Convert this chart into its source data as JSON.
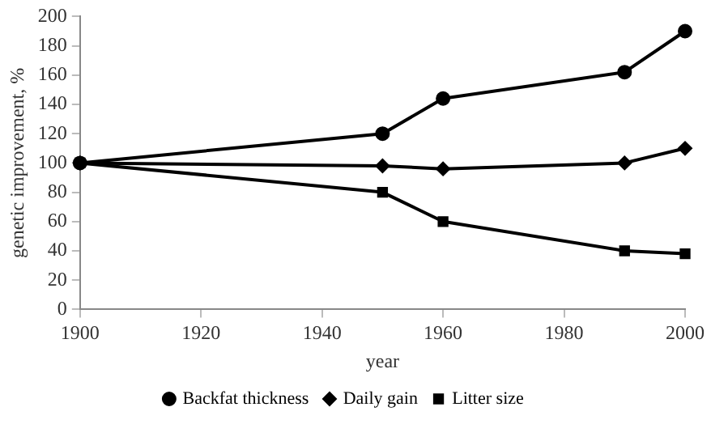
{
  "chart_data": {
    "type": "line",
    "xlabel": "year",
    "ylabel": "genetic improvement, %",
    "x": [
      1900,
      1950,
      1960,
      1990,
      2000
    ],
    "series": [
      {
        "name": "Backfat thickness",
        "color": "#000000",
        "marker": "circle",
        "values": [
          100,
          120,
          144,
          162,
          190
        ]
      },
      {
        "name": "Daily gain",
        "color": "#000000",
        "marker": "diamond",
        "values": [
          100,
          98,
          96,
          100,
          110
        ]
      },
      {
        "name": "Litter size",
        "color": "#000000",
        "marker": "square",
        "values": [
          100,
          80,
          60,
          40,
          38
        ]
      }
    ],
    "xlim": [
      1900,
      2000
    ],
    "xticks": [
      1900,
      1920,
      1940,
      1960,
      1980,
      2000
    ],
    "ylim": [
      0,
      200
    ],
    "yticks": [
      0,
      20,
      40,
      60,
      80,
      100,
      120,
      140,
      160,
      180,
      200
    ],
    "grid": false,
    "legend": "bottom",
    "line_style": "solid"
  }
}
